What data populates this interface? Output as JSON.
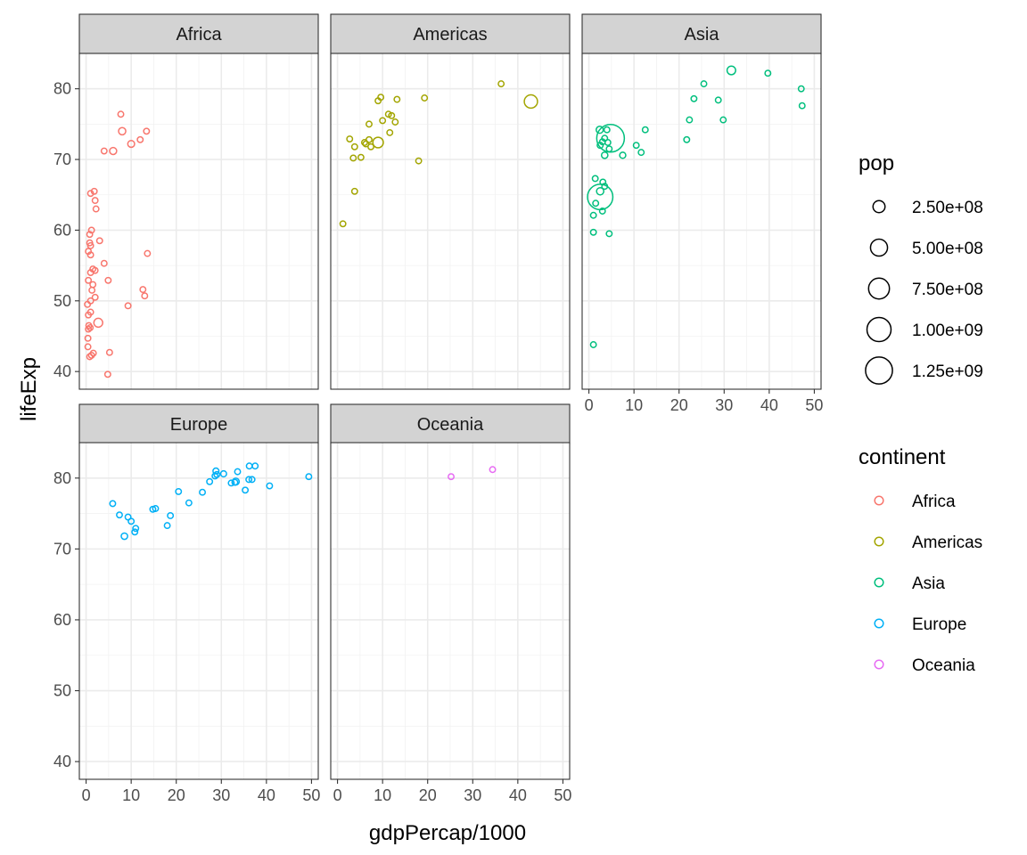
{
  "chart_data": {
    "type": "scatter",
    "xlabel": "gdpPercap/1000",
    "ylabel": "lifeExp",
    "xlim": [
      -1.5,
      51.5
    ],
    "ylim": [
      37.5,
      85
    ],
    "x_ticks": [
      0,
      10,
      20,
      30,
      40,
      50
    ],
    "y_ticks": [
      40,
      50,
      60,
      70,
      80
    ],
    "facets": [
      "Africa",
      "Americas",
      "Asia",
      "Europe",
      "Oceania"
    ],
    "legend_size": {
      "title": "pop",
      "entries": [
        {
          "label": "2.50e+08",
          "value": 250000000
        },
        {
          "label": "5.00e+08",
          "value": 500000000
        },
        {
          "label": "7.50e+08",
          "value": 750000000
        },
        {
          "label": "1.00e+09",
          "value": 1000000000
        },
        {
          "label": "1.25e+09",
          "value": 1250000000
        }
      ]
    },
    "legend_color": {
      "title": "continent",
      "entries": [
        {
          "label": "Africa",
          "color": "#F8766D"
        },
        {
          "label": "Americas",
          "color": "#A3A500"
        },
        {
          "label": "Asia",
          "color": "#00BF7D"
        },
        {
          "label": "Europe",
          "color": "#00B0F6"
        },
        {
          "label": "Oceania",
          "color": "#E76BF3"
        }
      ]
    },
    "series": [
      {
        "name": "Africa",
        "color": "#F8766D",
        "points": [
          [
            7.7,
            76.4,
            40000000.0
          ],
          [
            13.4,
            74.0,
            10000000.0
          ],
          [
            8.0,
            74.0,
            90000000.0
          ],
          [
            12.0,
            72.8,
            1200000.0
          ],
          [
            10.0,
            72.2,
            80000000.0
          ],
          [
            4.0,
            71.2,
            30000000.0
          ],
          [
            6.0,
            71.2,
            85000000.0
          ],
          [
            1.8,
            65.5,
            5000000.0
          ],
          [
            1.0,
            65.2,
            1000000.0
          ],
          [
            2.0,
            64.2,
            5000000.0
          ],
          [
            2.2,
            63.0,
            10000000.0
          ],
          [
            1.2,
            60.0,
            10000000.0
          ],
          [
            0.8,
            59.4,
            10000000.0
          ],
          [
            3.0,
            58.5,
            35000000.0
          ],
          [
            0.8,
            58.2,
            5000000.0
          ],
          [
            1.0,
            57.8,
            10000000.0
          ],
          [
            13.6,
            56.7,
            1500000.0
          ],
          [
            0.5,
            57.0,
            12000000.0
          ],
          [
            1.0,
            56.5,
            10000000.0
          ],
          [
            4.0,
            55.3,
            10000000.0
          ],
          [
            1.5,
            54.5,
            15000000.0
          ],
          [
            2.0,
            54.3,
            5000000.0
          ],
          [
            1.0,
            54.0,
            2000000.0
          ],
          [
            4.9,
            52.9,
            2000000.0
          ],
          [
            0.5,
            52.9,
            18000000.0
          ],
          [
            1.5,
            52.3,
            15000000.0
          ],
          [
            12.6,
            51.6,
            500000.0
          ],
          [
            1.3,
            51.5,
            10000000.0
          ],
          [
            13.0,
            50.7,
            1000000.0
          ],
          [
            2.0,
            50.5,
            5000000.0
          ],
          [
            1.0,
            50.0,
            3000000.0
          ],
          [
            0.3,
            49.5,
            5000000.0
          ],
          [
            9.3,
            49.3,
            45000000.0
          ],
          [
            1.0,
            48.4,
            15000000.0
          ],
          [
            0.5,
            48.0,
            1000000.0
          ],
          [
            2.7,
            46.9,
            135000000.0
          ],
          [
            0.6,
            46.5,
            50000000.0
          ],
          [
            0.5,
            46.0,
            5000000.0
          ],
          [
            0.9,
            46.2,
            10000000.0
          ],
          [
            0.4,
            44.7,
            8000000.0
          ],
          [
            0.4,
            43.5,
            10000000.0
          ],
          [
            1.6,
            42.6,
            3000000.0
          ],
          [
            1.2,
            42.3,
            10000000.0
          ],
          [
            0.8,
            42.1,
            10000000.0
          ],
          [
            5.2,
            42.7,
            10000000.0
          ],
          [
            4.8,
            39.6,
            5000000.0
          ]
        ]
      },
      {
        "name": "Americas",
        "color": "#A3A500",
        "points": [
          [
            36.3,
            80.7,
            33000000.0
          ],
          [
            42.9,
            78.2,
            301000000.0
          ],
          [
            9.6,
            78.8,
            4000000.0
          ],
          [
            19.3,
            78.7,
            4000000.0
          ],
          [
            9.0,
            78.3,
            4000000.0
          ],
          [
            13.2,
            78.5,
            10000000.0
          ],
          [
            11.3,
            76.4,
            40000000.0
          ],
          [
            12.0,
            76.2,
            40000000.0
          ],
          [
            10.0,
            75.5,
            16000000.0
          ],
          [
            12.8,
            75.3,
            10000000.0
          ],
          [
            7.0,
            75.0,
            5000000.0
          ],
          [
            11.6,
            73.8,
            30000000.0
          ],
          [
            2.7,
            72.9,
            8000000.0
          ],
          [
            6.0,
            72.4,
            10000000.0
          ],
          [
            7.0,
            72.8,
            30000000.0
          ],
          [
            9.0,
            72.4,
            190000000.0
          ],
          [
            6.3,
            72.2,
            5000000.0
          ],
          [
            7.4,
            71.8,
            10000000.0
          ],
          [
            3.8,
            71.8,
            5000000.0
          ],
          [
            5.2,
            70.3,
            10000000.0
          ],
          [
            3.5,
            70.2,
            10000000.0
          ],
          [
            18.0,
            69.8,
            1000000.0
          ],
          [
            3.8,
            65.5,
            9000000.0
          ],
          [
            1.2,
            60.9,
            9000000.0
          ]
        ]
      },
      {
        "name": "Asia",
        "color": "#00BF7D",
        "points": [
          [
            31.6,
            82.6,
            127000000.0
          ],
          [
            39.7,
            82.2,
            7000000.0
          ],
          [
            47.1,
            80.0,
            4000000.0
          ],
          [
            25.5,
            80.7,
            2000000.0
          ],
          [
            23.3,
            78.6,
            49000000.0
          ],
          [
            28.7,
            78.4,
            23000000.0
          ],
          [
            47.3,
            77.6,
            3000000.0
          ],
          [
            22.3,
            75.6,
            5000000.0
          ],
          [
            29.8,
            75.6,
            700000.0
          ],
          [
            12.5,
            74.2,
            28000000.0
          ],
          [
            2.4,
            74.2,
            85000000.0
          ],
          [
            4.0,
            74.2,
            20000000.0
          ],
          [
            3.5,
            73.0,
            10000000.0
          ],
          [
            4.8,
            73.0,
            1318000000.0
          ],
          [
            3.0,
            72.5,
            10000000.0
          ],
          [
            21.7,
            72.8,
            3000000.0
          ],
          [
            4.2,
            72.4,
            10000000.0
          ],
          [
            2.5,
            72.0,
            60000000.0
          ],
          [
            10.5,
            72.0,
            4000000.0
          ],
          [
            11.6,
            71.0,
            27000000.0
          ],
          [
            4.5,
            71.5,
            10000000.0
          ],
          [
            3.5,
            70.6,
            70000000.0
          ],
          [
            7.5,
            70.6,
            65000000.0
          ],
          [
            1.4,
            67.3,
            20000000.0
          ],
          [
            3.1,
            66.8,
            10000000.0
          ],
          [
            3.5,
            66.2,
            5000000.0
          ],
          [
            2.5,
            65.5,
            90000000.0
          ],
          [
            2.5,
            64.7,
            1110000000.0
          ],
          [
            1.5,
            63.8,
            50000000.0
          ],
          [
            1.0,
            62.1,
            10000000.0
          ],
          [
            3.0,
            62.7,
            15000000.0
          ],
          [
            1.0,
            59.7,
            10000000.0
          ],
          [
            4.5,
            59.5,
            11000000.0
          ],
          [
            1.0,
            43.8,
            30000000.0
          ]
        ]
      },
      {
        "name": "Europe",
        "color": "#00B0F6",
        "points": [
          [
            49.4,
            80.2,
            4600000.0
          ],
          [
            37.5,
            81.7,
            9000000.0
          ],
          [
            36.2,
            81.7,
            5000000.0
          ],
          [
            28.8,
            81.0,
            61000000.0
          ],
          [
            29.0,
            80.5,
            4000000.0
          ],
          [
            30.5,
            80.6,
            61000000.0
          ],
          [
            33.6,
            80.9,
            10000000.0
          ],
          [
            28.6,
            80.3,
            30000000.0
          ],
          [
            36.8,
            79.8,
            16000000.0
          ],
          [
            27.4,
            79.5,
            40000000.0
          ],
          [
            32.2,
            79.3,
            10000000.0
          ],
          [
            33.0,
            79.4,
            35000000.0
          ],
          [
            33.2,
            79.5,
            82000000.0
          ],
          [
            36.1,
            79.8,
            10000000.0
          ],
          [
            40.7,
            78.9,
            5000000.0
          ],
          [
            35.3,
            78.3,
            5000000.0
          ],
          [
            20.5,
            78.1,
            10000000.0
          ],
          [
            25.8,
            78.0,
            2000000.0
          ],
          [
            5.9,
            76.4,
            4000000.0
          ],
          [
            22.8,
            76.5,
            10000000.0
          ],
          [
            15.4,
            75.7,
            10000000.0
          ],
          [
            14.8,
            75.6,
            35000000.0
          ],
          [
            18.7,
            74.7,
            2000000.0
          ],
          [
            9.3,
            74.5,
            10000000.0
          ],
          [
            7.4,
            74.8,
            5000000.0
          ],
          [
            10.0,
            73.9,
            10000000.0
          ],
          [
            18.0,
            73.3,
            10000000.0
          ],
          [
            11.0,
            72.9,
            10000000.0
          ],
          [
            10.8,
            72.4,
            10000000.0
          ],
          [
            8.5,
            71.8,
            71000000.0
          ]
        ]
      },
      {
        "name": "Oceania",
        "color": "#E76BF3",
        "points": [
          [
            34.4,
            81.2,
            20000000.0
          ],
          [
            25.2,
            80.2,
            4000000.0
          ]
        ]
      }
    ]
  }
}
